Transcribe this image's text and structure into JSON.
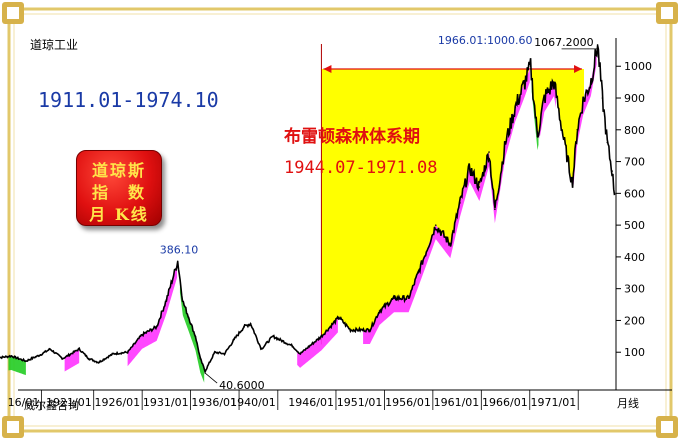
{
  "header": {
    "index_name": "道琼工业",
    "date_range": "1911.01-1974.10",
    "badge_lines": [
      "道琼斯",
      "指　数",
      "月 K线"
    ],
    "period_title": "布雷顿森林体系期",
    "period_range": "1944.07-1971.08",
    "company": "威尔鑫咨询",
    "unit_label": "月线"
  },
  "chart_data": {
    "type": "line",
    "title": "道琼工业",
    "xlabel": "",
    "ylabel": "",
    "x_ticks": [
      "16/01",
      "1921/01",
      "1926/01",
      "1931/01",
      "1936/01",
      "1940/01",
      "1946/01",
      "1951/01",
      "1956/01",
      "1961/01",
      "1966/01",
      "1971/01"
    ],
    "y_ticks": [
      100,
      200,
      300,
      400,
      500,
      600,
      700,
      800,
      900,
      1000
    ],
    "ylim": [
      0,
      1070
    ],
    "grid": false,
    "series": [
      {
        "name": "",
        "x": [
          1911.0,
          1912.5,
          1914.0,
          1915.5,
          1916.5,
          1917.8,
          1919.5,
          1920.5,
          1921.5,
          1923.0,
          1924.5,
          1926.0,
          1927.5,
          1928.5,
          1929.67,
          1930.2,
          1930.8,
          1931.5,
          1932.0,
          1932.5,
          1933.5,
          1934.5,
          1935.5,
          1936.5,
          1937.2,
          1938.3,
          1939.5,
          1941.5,
          1942.3,
          1944.5,
          1946.3,
          1947.5,
          1949.5,
          1950.5,
          1952.0,
          1953.5,
          1954.5,
          1956.3,
          1957.8,
          1958.8,
          1959.8,
          1960.8,
          1961.8,
          1962.4,
          1963.5,
          1964.5,
          1965.5,
          1966.08,
          1966.8,
          1967.5,
          1968.5,
          1969.5,
          1970.4,
          1970.9,
          1971.5,
          1972.3,
          1973.0,
          1973.5,
          1974.0,
          1974.5,
          1974.75
        ],
        "values": [
          82,
          88,
          72,
          92,
          110,
          80,
          110,
          80,
          68,
          95,
          100,
          155,
          180,
          265,
          386.1,
          260,
          210,
          150,
          80,
          40.6,
          100,
          95,
          140,
          180,
          190,
          110,
          150,
          120,
          95,
          150,
          210,
          170,
          170,
          230,
          270,
          270,
          350,
          500,
          440,
          570,
          680,
          620,
          730,
          550,
          760,
          870,
          950,
          1000.6,
          780,
          900,
          950,
          770,
          630,
          800,
          890,
          950,
          1067.2,
          900,
          760,
          670,
          600
        ]
      }
    ],
    "annotations": {
      "peak_1929": "386.10",
      "low_1932": "40.6000",
      "peak_1966": "1966.01:1000.60",
      "peak_1973": "1067.2000"
    },
    "highlight_period": {
      "start": 1944.5,
      "end": 1971.6,
      "fill": "#ffff00",
      "label": "布雷顿森林体系期 1944.07-1971.08"
    },
    "colors": {
      "price_line": "#000000",
      "up_band": "#ff33ff",
      "down_band": "#22cc22",
      "axis_text": "#000000",
      "annotation_blue": "#1a3aa6",
      "annotation_red": "#e01010"
    }
  }
}
